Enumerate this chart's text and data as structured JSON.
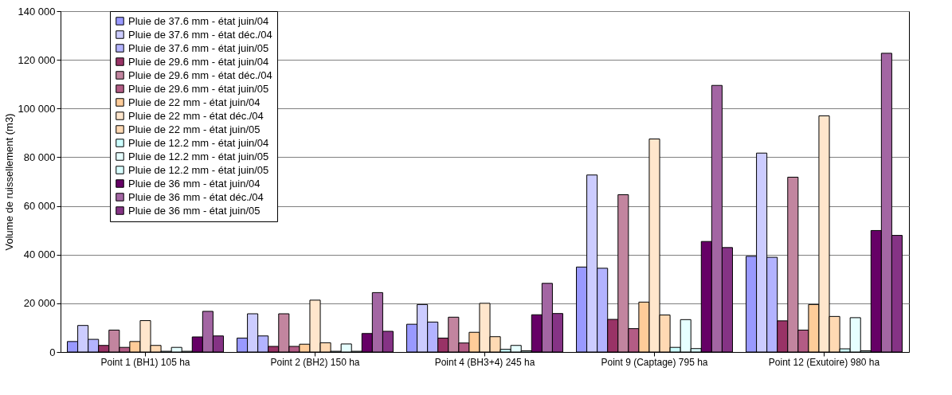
{
  "chart_data": {
    "type": "bar",
    "ylabel": "Volume de ruissellement (m3)",
    "categories": [
      "Point 1 (BH1) 105 ha",
      "Point 2 (BH2) 150 ha",
      "Point 4 (BH3+4) 245 ha",
      "Point 9 (Captage) 795 ha",
      "Point 12 (Exutoire) 980 ha"
    ],
    "series": [
      {
        "name": "Pluie de 37.6 mm - état juin/04",
        "color": "#9999ff",
        "values": [
          4300,
          5700,
          11400,
          34900,
          39300
        ]
      },
      {
        "name": "Pluie de 37.6 mm - état déc./04",
        "color": "#ccccff",
        "values": [
          10900,
          15700,
          19500,
          72700,
          81700
        ]
      },
      {
        "name": "Pluie de 37.6 mm - état juin/05",
        "color": "#b3b3ff",
        "values": [
          5200,
          6600,
          12300,
          34400,
          38900
        ]
      },
      {
        "name": "Pluie de 29.6 mm - état juin/04",
        "color": "#993366",
        "values": [
          2700,
          2300,
          5700,
          13400,
          12800
        ]
      },
      {
        "name": "Pluie de 29.6 mm - état déc./04",
        "color": "#c2859f",
        "values": [
          9000,
          15700,
          14300,
          64600,
          71800
        ]
      },
      {
        "name": "Pluie de 29.6 mm  - état juin/05",
        "color": "#b35c85",
        "values": [
          1900,
          2300,
          3700,
          9600,
          9000
        ]
      },
      {
        "name": "Pluie de 22 mm - état juin/04",
        "color": "#ffcc99",
        "values": [
          4300,
          3200,
          8100,
          20500,
          19500
        ]
      },
      {
        "name": "Pluie de 22 mm - état déc./04",
        "color": "#ffe6cc",
        "values": [
          12900,
          21300,
          20000,
          87500,
          97000
        ]
      },
      {
        "name": "Pluie de 22 mm - état juin/05",
        "color": "#ffd9b3",
        "values": [
          2700,
          3800,
          6300,
          15200,
          14600
        ]
      },
      {
        "name": "Pluie de 12.2 mm - état juin/04",
        "color": "#ccffff",
        "values": [
          300,
          300,
          1100,
          1900,
          1300
        ]
      },
      {
        "name": "Pluie de 12.2 mm - état juin/05",
        "color": "#e6ffff",
        "values": [
          1900,
          3300,
          2700,
          13300,
          14100
        ]
      },
      {
        "name": "Pluie de 12.2 mm - état juin/05",
        "color": "#d9ffff",
        "values": [
          300,
          300,
          500,
          1400,
          500
        ]
      },
      {
        "name": "Pluie de 36 mm - état juin/04",
        "color": "#660066",
        "values": [
          6200,
          7600,
          15300,
          45400,
          49900
        ]
      },
      {
        "name": "Pluie de 36 mm - état déc./04",
        "color": "#a366a3",
        "values": [
          16700,
          24400,
          28200,
          109500,
          122700
        ]
      },
      {
        "name": "Pluie de 36 mm - état juin/05",
        "color": "#853385",
        "values": [
          6600,
          8500,
          15800,
          42900,
          47900
        ]
      }
    ],
    "ylim": [
      0,
      140000
    ],
    "yticks": [
      0,
      {
        "value": 20000,
        "label": "20 000"
      },
      {
        "value": 40000,
        "label": "40 000"
      },
      {
        "value": 60000,
        "label": "60 000"
      },
      {
        "value": 80000,
        "label": "80 000"
      },
      {
        "value": 100000,
        "label": "100 000"
      },
      {
        "value": 120000,
        "label": "120 000"
      },
      {
        "value": 140000,
        "label": "140 000"
      }
    ],
    "grid": "y",
    "legend": "top left"
  }
}
